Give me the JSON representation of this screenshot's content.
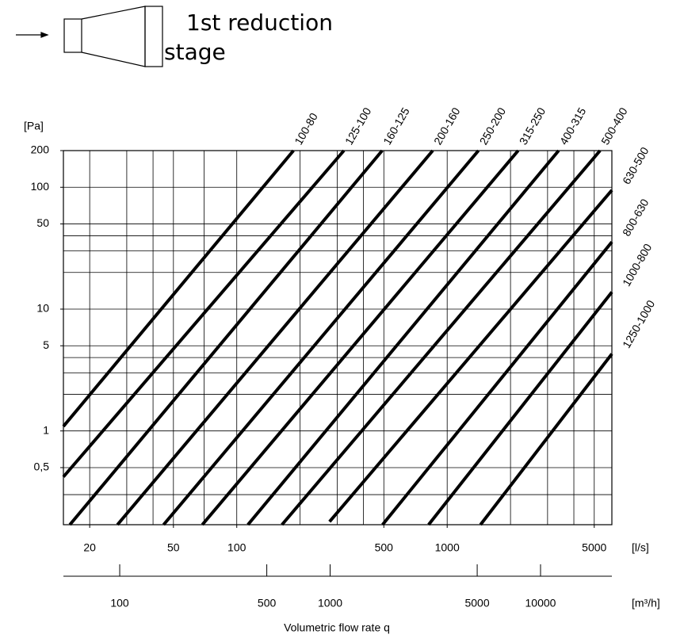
{
  "chart_data": {
    "type": "line",
    "title": "1st reduction stage",
    "y_unit": "[Pa]",
    "x_unit": "[l/s]",
    "x2_unit": "[m³/h]",
    "xlabel": "Volumetric flow rate q",
    "log_x": true,
    "log_y": true,
    "grid": true,
    "color": "#000000",
    "xlim": [
      15,
      6064
    ],
    "ylim": [
      0.17,
      200
    ],
    "x2lim": [
      54,
      21830
    ],
    "xticks": [
      20,
      50,
      100,
      500,
      1000,
      5000
    ],
    "x2ticks": [
      100,
      500,
      1000,
      5000,
      10000
    ],
    "yticks": [
      200,
      100,
      50,
      10,
      5,
      1,
      {
        "value": 0.5,
        "label": "0,5"
      }
    ],
    "xgrid": [
      20,
      30,
      40,
      50,
      70,
      100,
      200,
      300,
      400,
      500,
      1000,
      2000,
      3000,
      4000,
      5000
    ],
    "ygrid": [
      200,
      100,
      50,
      40,
      30,
      20,
      10,
      5,
      4,
      3,
      2,
      1,
      0.5,
      0.3
    ],
    "series": [
      {
        "name": "100-80",
        "x": [
          15,
          186
        ],
        "values": [
          1.09,
          200
        ]
      },
      {
        "name": "125-100",
        "x": [
          15,
          323
        ],
        "values": [
          0.42,
          200
        ]
      },
      {
        "name": "160-125",
        "x": [
          16.1,
          491
        ],
        "values": [
          0.17,
          200
        ]
      },
      {
        "name": "200-160",
        "x": [
          27.1,
          854
        ],
        "values": [
          0.17,
          200
        ]
      },
      {
        "name": "250-200",
        "x": [
          44.9,
          1408
        ],
        "values": [
          0.17,
          200
        ]
      },
      {
        "name": "315-250",
        "x": [
          68.6,
          2175
        ],
        "values": [
          0.17,
          200
        ]
      },
      {
        "name": "400-315",
        "x": [
          113,
          3387
        ],
        "values": [
          0.17,
          200
        ]
      },
      {
        "name": "500-400",
        "x": [
          164,
          5330
        ],
        "values": [
          0.17,
          200
        ]
      },
      {
        "name": "630-500",
        "x": [
          276,
          6064
        ],
        "values": [
          0.18,
          94.7
        ]
      },
      {
        "name": "800-630",
        "x": [
          493,
          6064
        ],
        "values": [
          0.17,
          35.6
        ]
      },
      {
        "name": "1000-800",
        "x": [
          816,
          6064
        ],
        "values": [
          0.17,
          13.8
        ]
      },
      {
        "name": "1250-1000",
        "x": [
          1440,
          6064
        ],
        "values": [
          0.17,
          4.29
        ]
      }
    ]
  }
}
